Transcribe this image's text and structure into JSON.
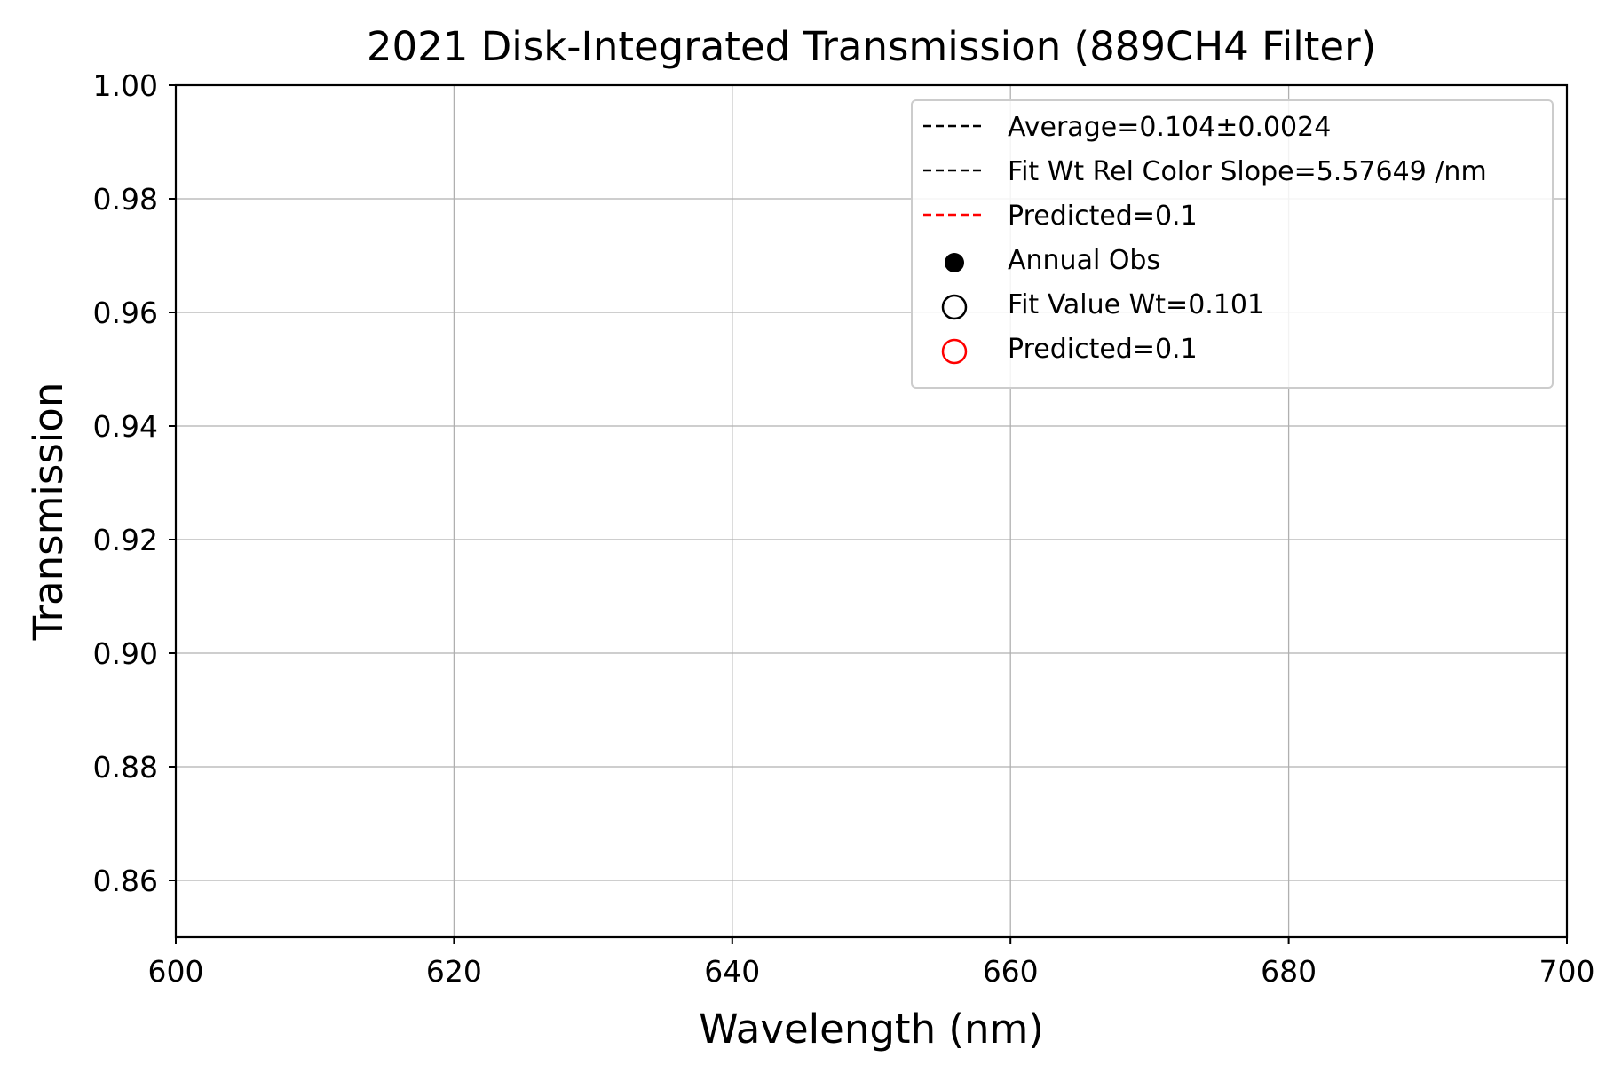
{
  "chart_data": {
    "type": "scatter",
    "title": "2021 Disk-Integrated Transmission (889CH4 Filter)",
    "xlabel": "Wavelength (nm)",
    "ylabel": "Transmission",
    "xlim": [
      600,
      700
    ],
    "ylim": [
      0.85,
      1.0
    ],
    "xticks": [
      600,
      620,
      640,
      660,
      680,
      700
    ],
    "xtick_labels": [
      "600",
      "620",
      "640",
      "660",
      "680",
      "700"
    ],
    "yticks": [
      0.86,
      0.88,
      0.9,
      0.92,
      0.94,
      0.96,
      0.98,
      1.0
    ],
    "ytick_labels": [
      "0.86",
      "0.88",
      "0.90",
      "0.92",
      "0.94",
      "0.96",
      "0.98",
      "1.00"
    ],
    "grid": true,
    "legend_position": "top-right",
    "series": [
      {
        "name": "Average=0.104±0.0024",
        "kind": "line",
        "style": "dashed",
        "color": "#000000",
        "x": [],
        "y": []
      },
      {
        "name": "Fit Wt Rel Color Slope=5.57649 /nm",
        "kind": "line",
        "style": "dashed",
        "color": "#000000",
        "x": [],
        "y": []
      },
      {
        "name": "Predicted=0.1",
        "kind": "line",
        "style": "dashed",
        "color": "#ff0000",
        "x": [],
        "y": []
      },
      {
        "name": "Annual Obs",
        "kind": "marker",
        "marker": "filled-circle",
        "color": "#000000",
        "x": [],
        "y": []
      },
      {
        "name": "Fit Value Wt=0.101",
        "kind": "marker",
        "marker": "open-circle",
        "color": "#000000",
        "x": [],
        "y": []
      },
      {
        "name": "Predicted=0.1",
        "kind": "marker",
        "marker": "open-circle",
        "color": "#ff0000",
        "x": [],
        "y": []
      }
    ]
  }
}
